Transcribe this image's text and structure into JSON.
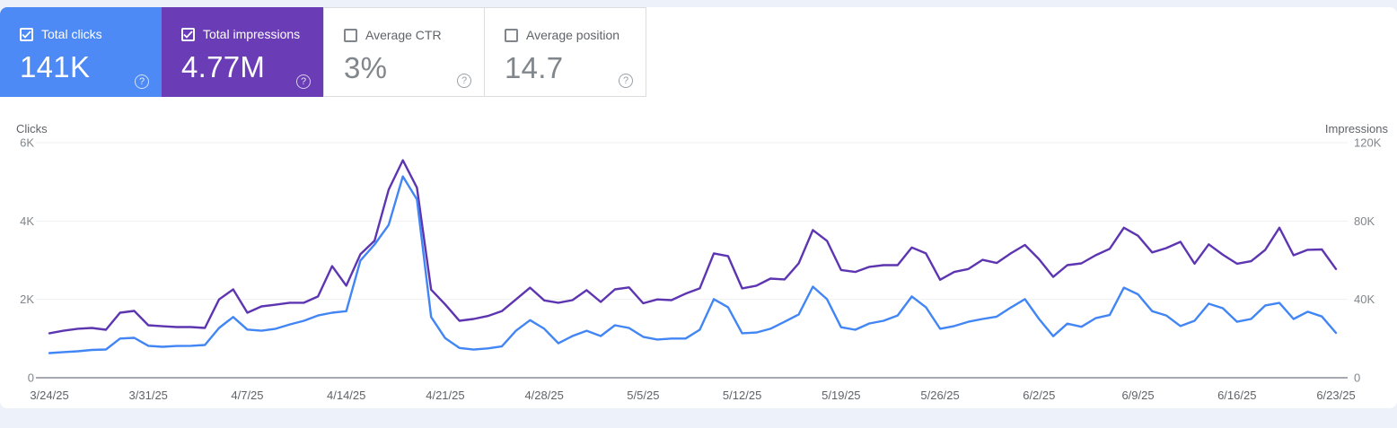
{
  "cards": [
    {
      "label": "Total clicks",
      "value": "141K",
      "checked": true,
      "bg": "#4d8af5",
      "label_color": "#ffffff",
      "value_color": "#ffffff"
    },
    {
      "label": "Total impressions",
      "value": "4.77M",
      "checked": true,
      "bg": "#6a3cb5",
      "label_color": "#ffffff",
      "value_color": "#ffffff"
    },
    {
      "label": "Average CTR",
      "value": "3%",
      "checked": false,
      "bg": "#ffffff",
      "label_color": "#5f6368",
      "value_color": "#80868b"
    },
    {
      "label": "Average position",
      "value": "14.7",
      "checked": false,
      "bg": "#ffffff",
      "label_color": "#5f6368",
      "value_color": "#80868b"
    }
  ],
  "help_glyph": "?",
  "chart_data": {
    "type": "line",
    "grid": "horizontal",
    "legend": "none",
    "x_tick_labels": [
      "3/24/25",
      "3/31/25",
      "4/7/25",
      "4/14/25",
      "4/21/25",
      "4/28/25",
      "5/5/25",
      "5/12/25",
      "5/19/25",
      "5/26/25",
      "6/2/25",
      "6/9/25",
      "6/16/25",
      "6/23/25"
    ],
    "left_axis": {
      "title": "Clicks",
      "ticks": [
        "0",
        "2K",
        "4K",
        "6K"
      ],
      "range": [
        0,
        6000
      ]
    },
    "right_axis": {
      "title": "Impressions",
      "ticks": [
        "0",
        "40K",
        "80K",
        "120K"
      ],
      "range": [
        0,
        120000
      ]
    },
    "series": [
      {
        "name": "Impressions",
        "axis": "right",
        "color": "#5e35b1",
        "values": [
          22700,
          24000,
          25000,
          25400,
          24500,
          33200,
          34100,
          26800,
          26300,
          25900,
          25900,
          25400,
          40000,
          45100,
          33200,
          36400,
          37300,
          38300,
          38300,
          41500,
          57000,
          47000,
          63000,
          70000,
          96000,
          111000,
          97000,
          45000,
          37400,
          29100,
          30000,
          31500,
          34000,
          40000,
          46000,
          39500,
          38300,
          39600,
          44700,
          38700,
          45100,
          46100,
          38000,
          40000,
          39600,
          42900,
          45600,
          63500,
          62100,
          45600,
          47000,
          50600,
          50200,
          58400,
          75400,
          69900,
          55000,
          54000,
          56600,
          57500,
          57500,
          66500,
          63500,
          50000,
          54000,
          55500,
          60200,
          58600,
          63500,
          67800,
          60500,
          51500,
          57500,
          58400,
          62500,
          65800,
          76600,
          72500,
          64000,
          66200,
          69400,
          58200,
          68100,
          62800,
          58200,
          59500,
          65300,
          76600,
          62500,
          65300,
          65500,
          55500
        ]
      },
      {
        "name": "Clicks",
        "axis": "left",
        "color": "#4285f4",
        "values": [
          630,
          655,
          676,
          710,
          722,
          1000,
          1020,
          815,
          790,
          810,
          815,
          836,
          1270,
          1550,
          1230,
          1200,
          1250,
          1360,
          1455,
          1590,
          1660,
          1700,
          2990,
          3400,
          3900,
          5140,
          4550,
          1550,
          1010,
          760,
          720,
          750,
          800,
          1200,
          1470,
          1250,
          880,
          1065,
          1200,
          1065,
          1340,
          1270,
          1045,
          975,
          1000,
          1000,
          1225,
          2005,
          1800,
          1135,
          1155,
          1250,
          1430,
          1615,
          2325,
          2005,
          1290,
          1225,
          1385,
          1455,
          1590,
          2075,
          1800,
          1250,
          1320,
          1430,
          1500,
          1560,
          1790,
          2005,
          1500,
          1060,
          1380,
          1300,
          1520,
          1600,
          2300,
          2130,
          1700,
          1590,
          1320,
          1455,
          1890,
          1775,
          1430,
          1500,
          1845,
          1910,
          1500,
          1685,
          1565,
          1145
        ]
      }
    ]
  }
}
